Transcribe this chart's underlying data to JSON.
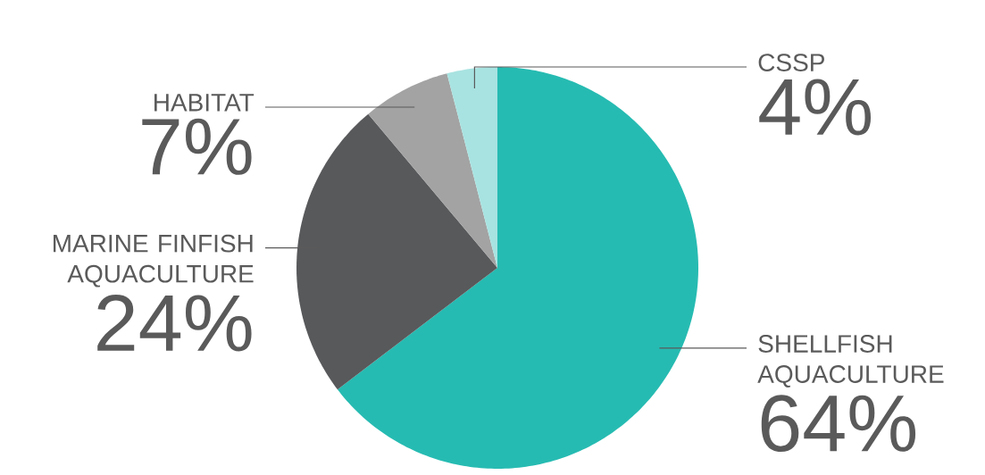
{
  "chart_data": {
    "type": "pie",
    "categories": [
      "SHELLFISH AQUACULTURE",
      "MARINE FINFISH AQUACULTURE",
      "HABITAT",
      "CSSP"
    ],
    "values": [
      64,
      24,
      7,
      4
    ],
    "colors": [
      "#26bbb2",
      "#58595b",
      "#a3a3a3",
      "#a8e3e1"
    ],
    "value_labels": [
      "64%",
      "24%",
      "7%",
      "4%"
    ]
  }
}
